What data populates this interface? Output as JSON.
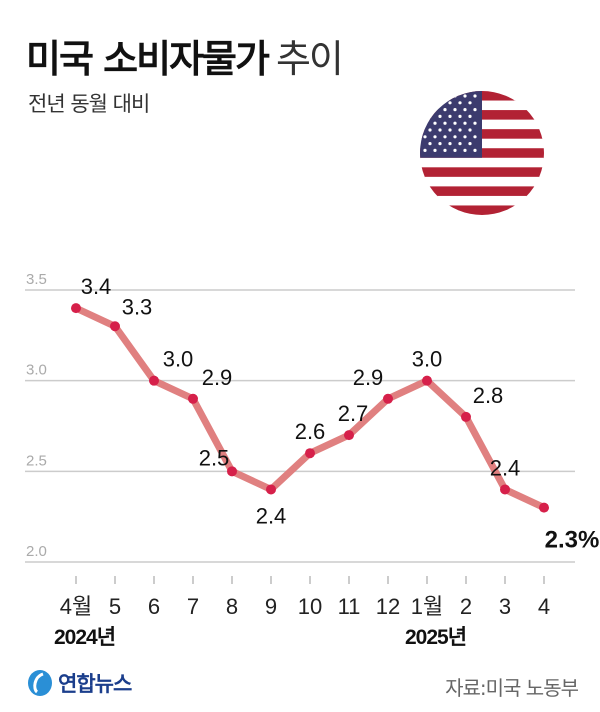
{
  "header": {
    "title_bold": "미국 소비자물가",
    "title_light": "추이",
    "subtitle": "전년 동월 대비"
  },
  "footer": {
    "logo_text": "연합뉴스",
    "source": "자료:미국 노동부"
  },
  "colors": {
    "line": "#e08080",
    "point": "#d6204a",
    "grid": "#cccccc"
  },
  "icons": {
    "flag": "us-flag-icon",
    "logo": "yonhap-logo-icon"
  },
  "chart_data": {
    "type": "line",
    "title": "미국 소비자물가 추이",
    "subtitle": "전년 동월 대비",
    "categories": [
      "4월",
      "5",
      "6",
      "7",
      "8",
      "9",
      "10",
      "11",
      "12",
      "1월",
      "2",
      "3",
      "4"
    ],
    "year_labels": [
      {
        "at": "4월",
        "label": "2024년"
      },
      {
        "at": "1월",
        "label": "2025년"
      }
    ],
    "values": [
      3.4,
      3.3,
      3.0,
      2.9,
      2.5,
      2.4,
      2.6,
      2.7,
      2.9,
      3.0,
      2.8,
      2.4,
      2.3
    ],
    "data_labels": [
      "3.4",
      "3.3",
      "3.0",
      "2.9",
      "2.5",
      "2.4",
      "2.6",
      "2.7",
      "2.9",
      "3.0",
      "2.8",
      "2.4",
      "2.3%"
    ],
    "yticks": [
      "2.0",
      "2.5",
      "3.0",
      "3.5"
    ],
    "ylim": [
      2.0,
      3.5
    ],
    "grid": true,
    "unit": "%"
  }
}
